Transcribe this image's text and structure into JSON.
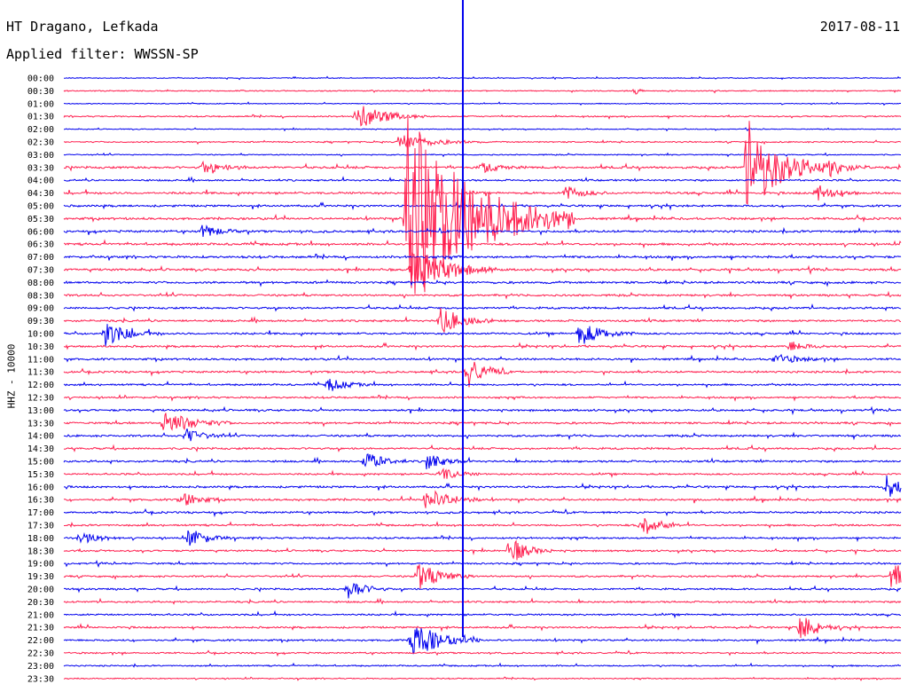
{
  "header": {
    "station": "HT Dragano, Lefkada",
    "filter": "Applied filter: WWSSN-SP",
    "date": "2017-08-11"
  },
  "colors": {
    "even": "#0000ee",
    "odd": "#ff1f4f",
    "marker": "#0000ee"
  },
  "chart_data": {
    "type": "line",
    "title": "HT Dragano, Lefkada",
    "subtitle": "Applied filter: WWSSN-SP",
    "ylabel": "HHZ - 10000",
    "rows": [
      "00:00",
      "00:30",
      "01:00",
      "01:30",
      "02:00",
      "02:30",
      "03:00",
      "03:30",
      "04:00",
      "04:30",
      "05:00",
      "05:30",
      "06:00",
      "06:30",
      "07:00",
      "07:30",
      "08:00",
      "08:30",
      "09:00",
      "09:30",
      "10:00",
      "10:30",
      "11:00",
      "11:30",
      "12:00",
      "12:30",
      "13:00",
      "13:30",
      "14:00",
      "14:30",
      "15:00",
      "15:30",
      "16:00",
      "16:30",
      "17:00",
      "17:30",
      "18:00",
      "18:30",
      "19:00",
      "19:30",
      "20:00",
      "20:30",
      "21:00",
      "21:30",
      "22:00",
      "22:30",
      "23:00",
      "23:30"
    ],
    "row_minutes": 30,
    "noise": [
      0.4,
      0.5,
      0.4,
      0.6,
      0.4,
      0.6,
      0.5,
      1.0,
      0.8,
      1.0,
      0.9,
      1.0,
      1.0,
      1.0,
      1.0,
      1.0,
      1.0,
      0.9,
      0.9,
      0.9,
      0.9,
      0.9,
      0.9,
      0.9,
      0.8,
      0.8,
      0.9,
      0.9,
      0.9,
      0.9,
      0.9,
      0.8,
      0.9,
      0.9,
      0.9,
      0.8,
      0.8,
      0.8,
      0.8,
      0.8,
      0.8,
      0.8,
      0.8,
      0.8,
      0.8,
      0.7,
      0.6,
      0.5
    ],
    "marker_minute": 14.3,
    "events": [
      {
        "row": 1,
        "minute": 20.5,
        "amp": 4,
        "dur": 0.4
      },
      {
        "row": 3,
        "minute": 10.5,
        "amp": 16,
        "dur": 2.5
      },
      {
        "row": 5,
        "minute": 12.0,
        "amp": 9,
        "dur": 3.0
      },
      {
        "row": 7,
        "minute": 5.0,
        "amp": 6,
        "dur": 2.0
      },
      {
        "row": 7,
        "minute": 15.0,
        "amp": 6,
        "dur": 1.5
      },
      {
        "row": 7,
        "minute": 27.5,
        "amp": 10,
        "dur": 1.5
      },
      {
        "row": 7,
        "minute": 24.5,
        "amp": 55,
        "dur": 3.0
      },
      {
        "row": 9,
        "minute": 18.0,
        "amp": 8,
        "dur": 1.5
      },
      {
        "row": 9,
        "minute": 27.0,
        "amp": 10,
        "dur": 1.5
      },
      {
        "row": 11,
        "minute": 12.3,
        "amp": 120,
        "dur": 6.0
      },
      {
        "row": 12,
        "minute": 5.0,
        "amp": 8,
        "dur": 1.5
      },
      {
        "row": 15,
        "minute": 12.5,
        "amp": 30,
        "dur": 3.0
      },
      {
        "row": 19,
        "minute": 13.5,
        "amp": 15,
        "dur": 2.0
      },
      {
        "row": 20,
        "minute": 1.5,
        "amp": 14,
        "dur": 2.0
      },
      {
        "row": 20,
        "minute": 18.5,
        "amp": 14,
        "dur": 2.0
      },
      {
        "row": 21,
        "minute": 26.0,
        "amp": 6,
        "dur": 1.5
      },
      {
        "row": 22,
        "minute": 25.5,
        "amp": 6,
        "dur": 2.0
      },
      {
        "row": 23,
        "minute": 14.5,
        "amp": 18,
        "dur": 1.5
      },
      {
        "row": 24,
        "minute": 9.5,
        "amp": 8,
        "dur": 1.5
      },
      {
        "row": 27,
        "minute": 3.6,
        "amp": 14,
        "dur": 2.5
      },
      {
        "row": 28,
        "minute": 4.4,
        "amp": 8,
        "dur": 1.5
      },
      {
        "row": 30,
        "minute": 10.8,
        "amp": 12,
        "dur": 1.5
      },
      {
        "row": 30,
        "minute": 13.0,
        "amp": 10,
        "dur": 1.5
      },
      {
        "row": 31,
        "minute": 13.5,
        "amp": 8,
        "dur": 1.5
      },
      {
        "row": 32,
        "minute": 29.5,
        "amp": 14,
        "dur": 1.5
      },
      {
        "row": 33,
        "minute": 4.2,
        "amp": 10,
        "dur": 1.5
      },
      {
        "row": 33,
        "minute": 13.0,
        "amp": 14,
        "dur": 2.0
      },
      {
        "row": 35,
        "minute": 20.7,
        "amp": 14,
        "dur": 1.5
      },
      {
        "row": 36,
        "minute": 0.6,
        "amp": 8,
        "dur": 1.5
      },
      {
        "row": 36,
        "minute": 4.5,
        "amp": 12,
        "dur": 1.5
      },
      {
        "row": 37,
        "minute": 16.0,
        "amp": 16,
        "dur": 1.5
      },
      {
        "row": 39,
        "minute": 12.7,
        "amp": 16,
        "dur": 2.0
      },
      {
        "row": 39,
        "minute": 29.7,
        "amp": 18,
        "dur": 1.5
      },
      {
        "row": 40,
        "minute": 10.2,
        "amp": 12,
        "dur": 1.5
      },
      {
        "row": 43,
        "minute": 26.4,
        "amp": 16,
        "dur": 1.5
      },
      {
        "row": 44,
        "minute": 12.5,
        "amp": 22,
        "dur": 2.5
      }
    ]
  }
}
